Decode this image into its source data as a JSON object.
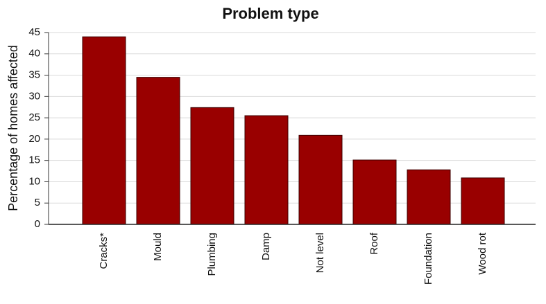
{
  "chart_data": {
    "type": "bar",
    "title": "Problem type",
    "y_label": "Percentage of homes affected",
    "categories": [
      "Cracks*",
      "Mould",
      "Plumbing",
      "Damp",
      "Not level",
      "Roof",
      "Foundation",
      "Wood rot"
    ],
    "values": [
      44,
      34.5,
      27.4,
      25.5,
      20.9,
      15.1,
      12.8,
      10.9
    ],
    "color": "#990000",
    "ylim": [
      0,
      45
    ],
    "yticks": [
      0,
      5,
      10,
      15,
      20,
      25,
      30,
      35,
      40,
      45
    ],
    "grid": true
  }
}
